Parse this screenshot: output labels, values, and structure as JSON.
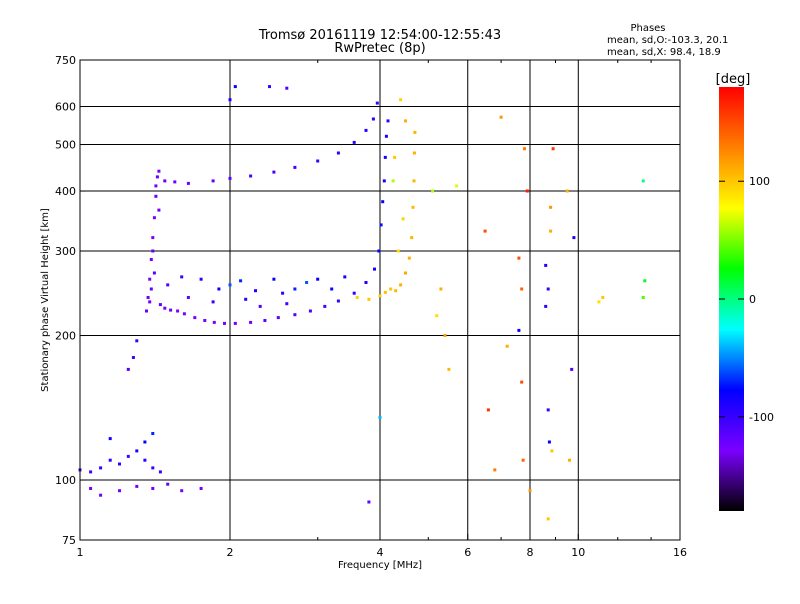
{
  "chart_data": {
    "type": "scatter",
    "title": "Tromsø 20161119 12:54:00-12:55:43",
    "subtitle": "RwPretec (8p)",
    "xlabel": "Frequency [MHz]",
    "ylabel": "Stationary phase Virtual Height [km]",
    "x_scale": "log",
    "y_scale": "log",
    "xlim": [
      1,
      16
    ],
    "ylim": [
      75,
      750
    ],
    "x_ticks": [
      1,
      2,
      4,
      6,
      8,
      10,
      16
    ],
    "y_ticks": [
      75,
      100,
      200,
      300,
      400,
      500,
      600,
      750
    ],
    "grid": true,
    "stats": {
      "title": "Phases",
      "line1": "mean, sd,O:-103.3, 20.1",
      "line2": "mean, sd,X:  98.4, 18.9"
    },
    "colorbar": {
      "label": "[deg]",
      "ticks": [
        100,
        0,
        -100
      ],
      "range": [
        -180,
        180
      ],
      "colors": [
        "#000000",
        "#7b00ff",
        "#0000ff",
        "#00ffff",
        "#00ff00",
        "#ffff00",
        "#ff8000",
        "#ff0000"
      ]
    },
    "series": [
      {
        "points": [
          [
            1.36,
            225,
            -120
          ],
          [
            1.37,
            240,
            -125
          ],
          [
            1.38,
            262,
            -128
          ],
          [
            1.39,
            288,
            -130
          ],
          [
            1.4,
            320,
            -128
          ],
          [
            1.41,
            352,
            -125
          ],
          [
            1.42,
            390,
            -122
          ],
          [
            1.43,
            428,
            -120
          ],
          [
            1.44,
            440,
            -130
          ],
          [
            1.4,
            300,
            -120
          ],
          [
            1.41,
            270,
            -115
          ],
          [
            1.39,
            250,
            -118
          ],
          [
            1.42,
            410,
            -128
          ],
          [
            1.44,
            365,
            -132
          ],
          [
            1.38,
            235,
            -122
          ],
          [
            1.45,
            232,
            -118
          ],
          [
            1.48,
            228,
            -125
          ],
          [
            1.52,
            226,
            -130
          ],
          [
            1.57,
            225,
            -128
          ],
          [
            1.62,
            222,
            -126
          ],
          [
            1.7,
            218,
            -130
          ],
          [
            1.78,
            215,
            -128
          ],
          [
            1.86,
            213,
            -126
          ],
          [
            1.95,
            212,
            -125
          ],
          [
            2.05,
            212,
            -120
          ],
          [
            2.2,
            213,
            -122
          ],
          [
            2.35,
            215,
            -118
          ],
          [
            2.5,
            218,
            -115
          ],
          [
            2.7,
            221,
            -112
          ],
          [
            2.9,
            225,
            -110
          ],
          [
            3.1,
            230,
            -105
          ],
          [
            3.3,
            236,
            -100
          ],
          [
            3.55,
            245,
            -95
          ],
          [
            3.75,
            258,
            -90
          ],
          [
            3.9,
            275,
            -85
          ],
          [
            3.98,
            300,
            -80
          ],
          [
            4.02,
            340,
            -75
          ],
          [
            4.05,
            380,
            -80
          ],
          [
            4.08,
            420,
            -85
          ],
          [
            4.1,
            470,
            -85
          ],
          [
            4.12,
            520,
            -90
          ],
          [
            4.15,
            560,
            -95
          ],
          [
            1.5,
            255,
            -110
          ],
          [
            1.6,
            265,
            -100
          ],
          [
            1.75,
            262,
            -95
          ],
          [
            1.9,
            250,
            -80
          ],
          [
            2.0,
            255,
            -60
          ],
          [
            2.1,
            260,
            -70
          ],
          [
            2.25,
            248,
            -90
          ],
          [
            2.45,
            262,
            -80
          ],
          [
            2.55,
            245,
            -95
          ],
          [
            2.7,
            250,
            -70
          ],
          [
            2.85,
            258,
            -60
          ],
          [
            3.0,
            262,
            -80
          ],
          [
            3.2,
            250,
            -75
          ],
          [
            1.85,
            235,
            -100
          ],
          [
            2.15,
            238,
            -95
          ],
          [
            2.3,
            230,
            -110
          ],
          [
            1.65,
            240,
            -118
          ],
          [
            2.6,
            233,
            -105
          ],
          [
            3.4,
            265,
            -85
          ],
          [
            1.48,
            420,
            -120
          ],
          [
            1.55,
            418,
            -125
          ],
          [
            1.65,
            415,
            -122
          ],
          [
            1.85,
            420,
            -118
          ],
          [
            2.0,
            425,
            -115
          ],
          [
            2.2,
            430,
            -110
          ],
          [
            2.45,
            438,
            -108
          ],
          [
            2.7,
            448,
            -105
          ],
          [
            3.0,
            462,
            -100
          ],
          [
            3.3,
            480,
            -98
          ],
          [
            3.55,
            505,
            -95
          ],
          [
            3.75,
            535,
            -92
          ],
          [
            3.88,
            565,
            -95
          ],
          [
            3.95,
            610,
            -100
          ],
          [
            4.2,
            250,
            100
          ],
          [
            4.3,
            248,
            105
          ],
          [
            4.4,
            255,
            110
          ],
          [
            4.5,
            270,
            112
          ],
          [
            4.58,
            290,
            110
          ],
          [
            4.63,
            320,
            108
          ],
          [
            4.66,
            370,
            105
          ],
          [
            4.68,
            420,
            108
          ],
          [
            4.69,
            480,
            110
          ],
          [
            4.7,
            530,
            108
          ],
          [
            3.6,
            240,
            95
          ],
          [
            3.8,
            238,
            100
          ],
          [
            4.0,
            242,
            98
          ],
          [
            4.1,
            246,
            102
          ],
          [
            4.35,
            300,
            90
          ],
          [
            4.45,
            350,
            95
          ],
          [
            4.25,
            420,
            60
          ],
          [
            4.28,
            470,
            100
          ],
          [
            4.4,
            620,
            95
          ],
          [
            4.5,
            560,
            110
          ],
          [
            1.0,
            105,
            -110
          ],
          [
            1.05,
            104,
            -105
          ],
          [
            1.1,
            106,
            -100
          ],
          [
            1.15,
            110,
            -95
          ],
          [
            1.2,
            108,
            -100
          ],
          [
            1.25,
            112,
            -105
          ],
          [
            1.3,
            115,
            -90
          ],
          [
            1.35,
            110,
            -95
          ],
          [
            1.4,
            106,
            -100
          ],
          [
            1.45,
            104,
            -105
          ],
          [
            1.35,
            120,
            -80
          ],
          [
            1.4,
            125,
            -70
          ],
          [
            1.15,
            122,
            -85
          ],
          [
            1.05,
            96,
            -130
          ],
          [
            1.1,
            93,
            -125
          ],
          [
            1.2,
            95,
            -128
          ],
          [
            1.3,
            97,
            -130
          ],
          [
            1.4,
            96,
            -125
          ],
          [
            1.5,
            98,
            -120
          ],
          [
            1.6,
            95,
            -128
          ],
          [
            1.75,
            96,
            -130
          ],
          [
            1.25,
            170,
            -110
          ],
          [
            1.28,
            180,
            -105
          ],
          [
            1.3,
            195,
            -100
          ],
          [
            2.4,
            660,
            -100
          ],
          [
            2.6,
            655,
            -110
          ],
          [
            2.0,
            620,
            -90
          ],
          [
            2.05,
            660,
            -80
          ],
          [
            5.3,
            250,
            110
          ],
          [
            5.4,
            200,
            115
          ],
          [
            5.5,
            170,
            105
          ],
          [
            5.2,
            220,
            90
          ],
          [
            5.1,
            400,
            60
          ],
          [
            5.7,
            410,
            70
          ],
          [
            6.5,
            330,
            150
          ],
          [
            6.6,
            140,
            160
          ],
          [
            6.8,
            105,
            130
          ],
          [
            7.0,
            570,
            120
          ],
          [
            7.2,
            190,
            110
          ],
          [
            7.6,
            290,
            150
          ],
          [
            7.7,
            250,
            140
          ],
          [
            7.7,
            160,
            150
          ],
          [
            7.75,
            110,
            140
          ],
          [
            7.8,
            490,
            130
          ],
          [
            7.9,
            400,
            170
          ],
          [
            8.0,
            95,
            120
          ],
          [
            7.6,
            205,
            -80
          ],
          [
            8.6,
            280,
            -90
          ],
          [
            8.7,
            250,
            -100
          ],
          [
            8.6,
            230,
            -95
          ],
          [
            8.8,
            330,
            110
          ],
          [
            8.9,
            490,
            160
          ],
          [
            8.8,
            370,
            120
          ],
          [
            8.7,
            140,
            -100
          ],
          [
            8.75,
            120,
            -80
          ],
          [
            8.85,
            115,
            100
          ],
          [
            8.7,
            83,
            100
          ],
          [
            9.5,
            400,
            110
          ],
          [
            9.8,
            320,
            -90
          ],
          [
            9.6,
            110,
            110
          ],
          [
            11.0,
            235,
            90
          ],
          [
            11.2,
            240,
            100
          ],
          [
            13.5,
            420,
            0
          ],
          [
            13.6,
            260,
            20
          ],
          [
            13.5,
            240,
            40
          ],
          [
            9.7,
            170,
            -110
          ],
          [
            3.8,
            90,
            -120
          ],
          [
            4.0,
            135,
            -40
          ]
        ]
      }
    ]
  }
}
